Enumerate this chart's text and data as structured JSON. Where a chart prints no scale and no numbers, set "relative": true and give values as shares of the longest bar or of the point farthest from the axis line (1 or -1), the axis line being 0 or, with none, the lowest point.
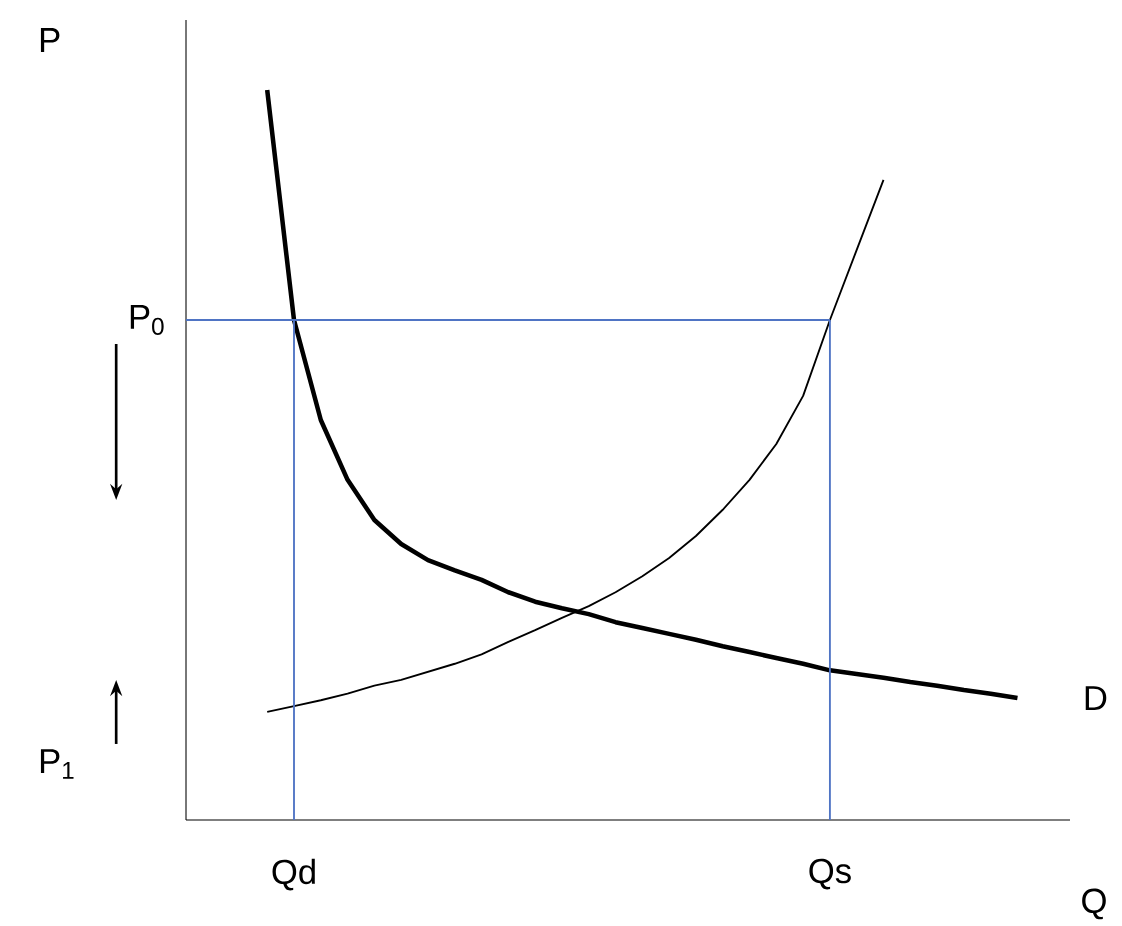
{
  "chart_data": {
    "type": "line",
    "relative": true,
    "xlabel": "Q",
    "categories": [
      null,
      "Qd",
      null,
      null,
      null,
      null,
      null,
      null,
      null,
      null,
      null,
      null,
      null,
      null,
      null,
      null,
      null,
      null,
      null,
      null,
      null,
      "Qs",
      null,
      null,
      null,
      null,
      null,
      null,
      null,
      null
    ],
    "series": [
      {
        "name": "D",
        "color": "#000000",
        "values": [
          1.0,
          0.685,
          0.548,
          0.466,
          0.411,
          0.378,
          0.356,
          0.342,
          0.329,
          0.312,
          0.299,
          0.29,
          0.282,
          0.271,
          0.263,
          0.255,
          0.247,
          0.238,
          0.23,
          0.222,
          0.214,
          0.205,
          0.2,
          0.195,
          0.189,
          0.184,
          0.178,
          0.173,
          0.167,
          null
        ]
      },
      {
        "color": "#000000",
        "values": [
          0.148,
          0.156,
          0.164,
          0.173,
          0.184,
          0.192,
          0.203,
          0.214,
          0.227,
          0.244,
          0.26,
          0.277,
          0.293,
          0.312,
          0.334,
          0.359,
          0.389,
          0.425,
          0.466,
          0.515,
          0.581,
          0.685,
          0.781,
          0.877,
          null,
          null,
          null,
          null,
          null,
          null
        ]
      }
    ],
    "ref_lines": [
      {
        "axis": "y",
        "value": 0.685,
        "color": "#4f74c4",
        "label": "P$_{0}$"
      },
      {
        "axis": "x",
        "value": "Qd",
        "color": "#4f74c4"
      },
      {
        "axis": "x",
        "value": "Qs",
        "color": "#4f74c4"
      }
    ],
    "annotations": [
      "P",
      "P$_{1}$"
    ],
    "grid": false,
    "marker": "none",
    "line_style": "solid"
  }
}
